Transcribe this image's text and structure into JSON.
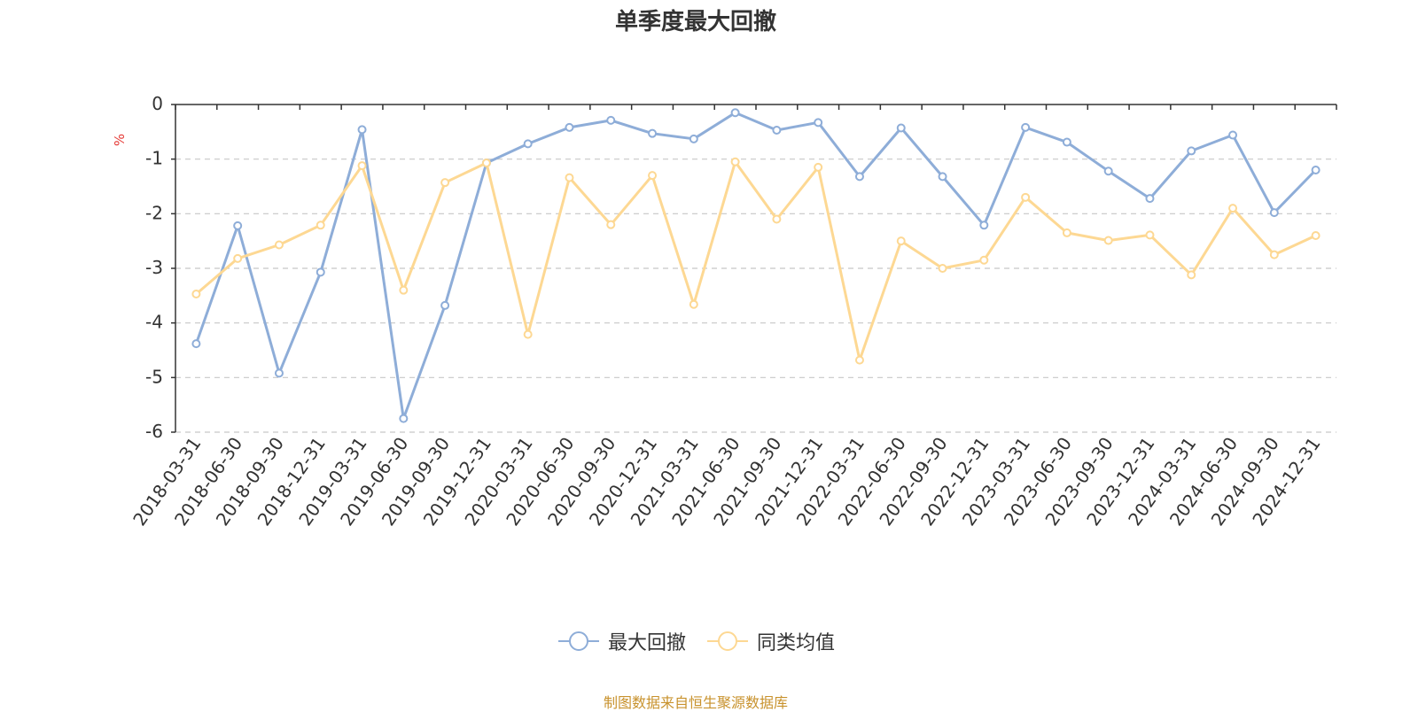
{
  "chart_data": {
    "type": "line",
    "title": "单季度最大回撤",
    "ylabel": "%",
    "ylim": [
      -6,
      0
    ],
    "yticks": [
      0,
      -1,
      -2,
      -3,
      -4,
      -5,
      -6
    ],
    "grid": true,
    "legend_position": "bottom",
    "categories": [
      "2018-03-31",
      "2018-06-30",
      "2018-09-30",
      "2018-12-31",
      "2019-03-31",
      "2019-06-30",
      "2019-09-30",
      "2019-12-31",
      "2020-03-31",
      "2020-06-30",
      "2020-09-30",
      "2020-12-31",
      "2021-03-31",
      "2021-06-30",
      "2021-09-30",
      "2021-12-31",
      "2022-03-31",
      "2022-06-30",
      "2022-09-30",
      "2022-12-31",
      "2023-03-31",
      "2023-06-30",
      "2023-09-30",
      "2023-12-31",
      "2024-03-31",
      "2024-06-30",
      "2024-09-30",
      "2024-12-31"
    ],
    "series": [
      {
        "name": "最大回撤",
        "color": "#8eadd8",
        "values": [
          -4.38,
          -2.22,
          -4.92,
          -3.07,
          -0.46,
          -5.75,
          -3.68,
          -1.07,
          -0.72,
          -0.42,
          -0.29,
          -0.53,
          -0.63,
          -0.15,
          -0.47,
          -0.33,
          -1.32,
          -0.43,
          -1.32,
          -2.21,
          -0.42,
          -0.69,
          -1.22,
          -1.72,
          -0.85,
          -0.56,
          -1.98,
          -1.2
        ]
      },
      {
        "name": "同类均值",
        "color": "#fdd893",
        "values": [
          -3.47,
          -2.82,
          -2.57,
          -2.21,
          -1.12,
          -3.4,
          -1.43,
          -1.07,
          -4.21,
          -1.34,
          -2.2,
          -1.3,
          -3.66,
          -1.05,
          -2.1,
          -1.15,
          -4.68,
          -2.5,
          -3.0,
          -2.85,
          -1.7,
          -2.35,
          -2.49,
          -2.39,
          -3.12,
          -1.9,
          -2.75,
          -2.4
        ]
      }
    ]
  },
  "source": "制图数据来自恒生聚源数据库"
}
